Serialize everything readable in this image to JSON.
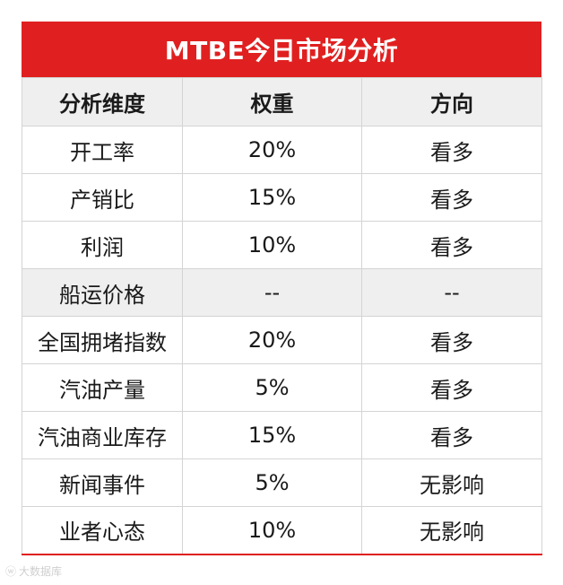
{
  "title": "MTBE今日市场分析",
  "headers": [
    "分析维度",
    "权重",
    "方向"
  ],
  "rows": [
    {
      "dimension": "开工率",
      "weight": "20%",
      "direction": "看多"
    },
    {
      "dimension": "产销比",
      "weight": "15%",
      "direction": "看多"
    },
    {
      "dimension": "利润",
      "weight": "10%",
      "direction": "看多"
    },
    {
      "dimension": "船运价格",
      "weight": "--",
      "direction": "--"
    },
    {
      "dimension": "全国拥堵指数",
      "weight": "20%",
      "direction": "看多"
    },
    {
      "dimension": "汽油产量",
      "weight": "5%",
      "direction": "看多"
    },
    {
      "dimension": "汽油商业库存",
      "weight": "15%",
      "direction": "看多"
    },
    {
      "dimension": "新闻事件",
      "weight": "5%",
      "direction": "无影响"
    },
    {
      "dimension": "业者心态",
      "weight": "10%",
      "direction": "无影响"
    }
  ],
  "watermark": "大数据库",
  "watermark_icon": "weibo-icon",
  "colors": {
    "title_bg": "#e02020",
    "title_text": "#ffffff",
    "shade_row": "#efefef"
  }
}
